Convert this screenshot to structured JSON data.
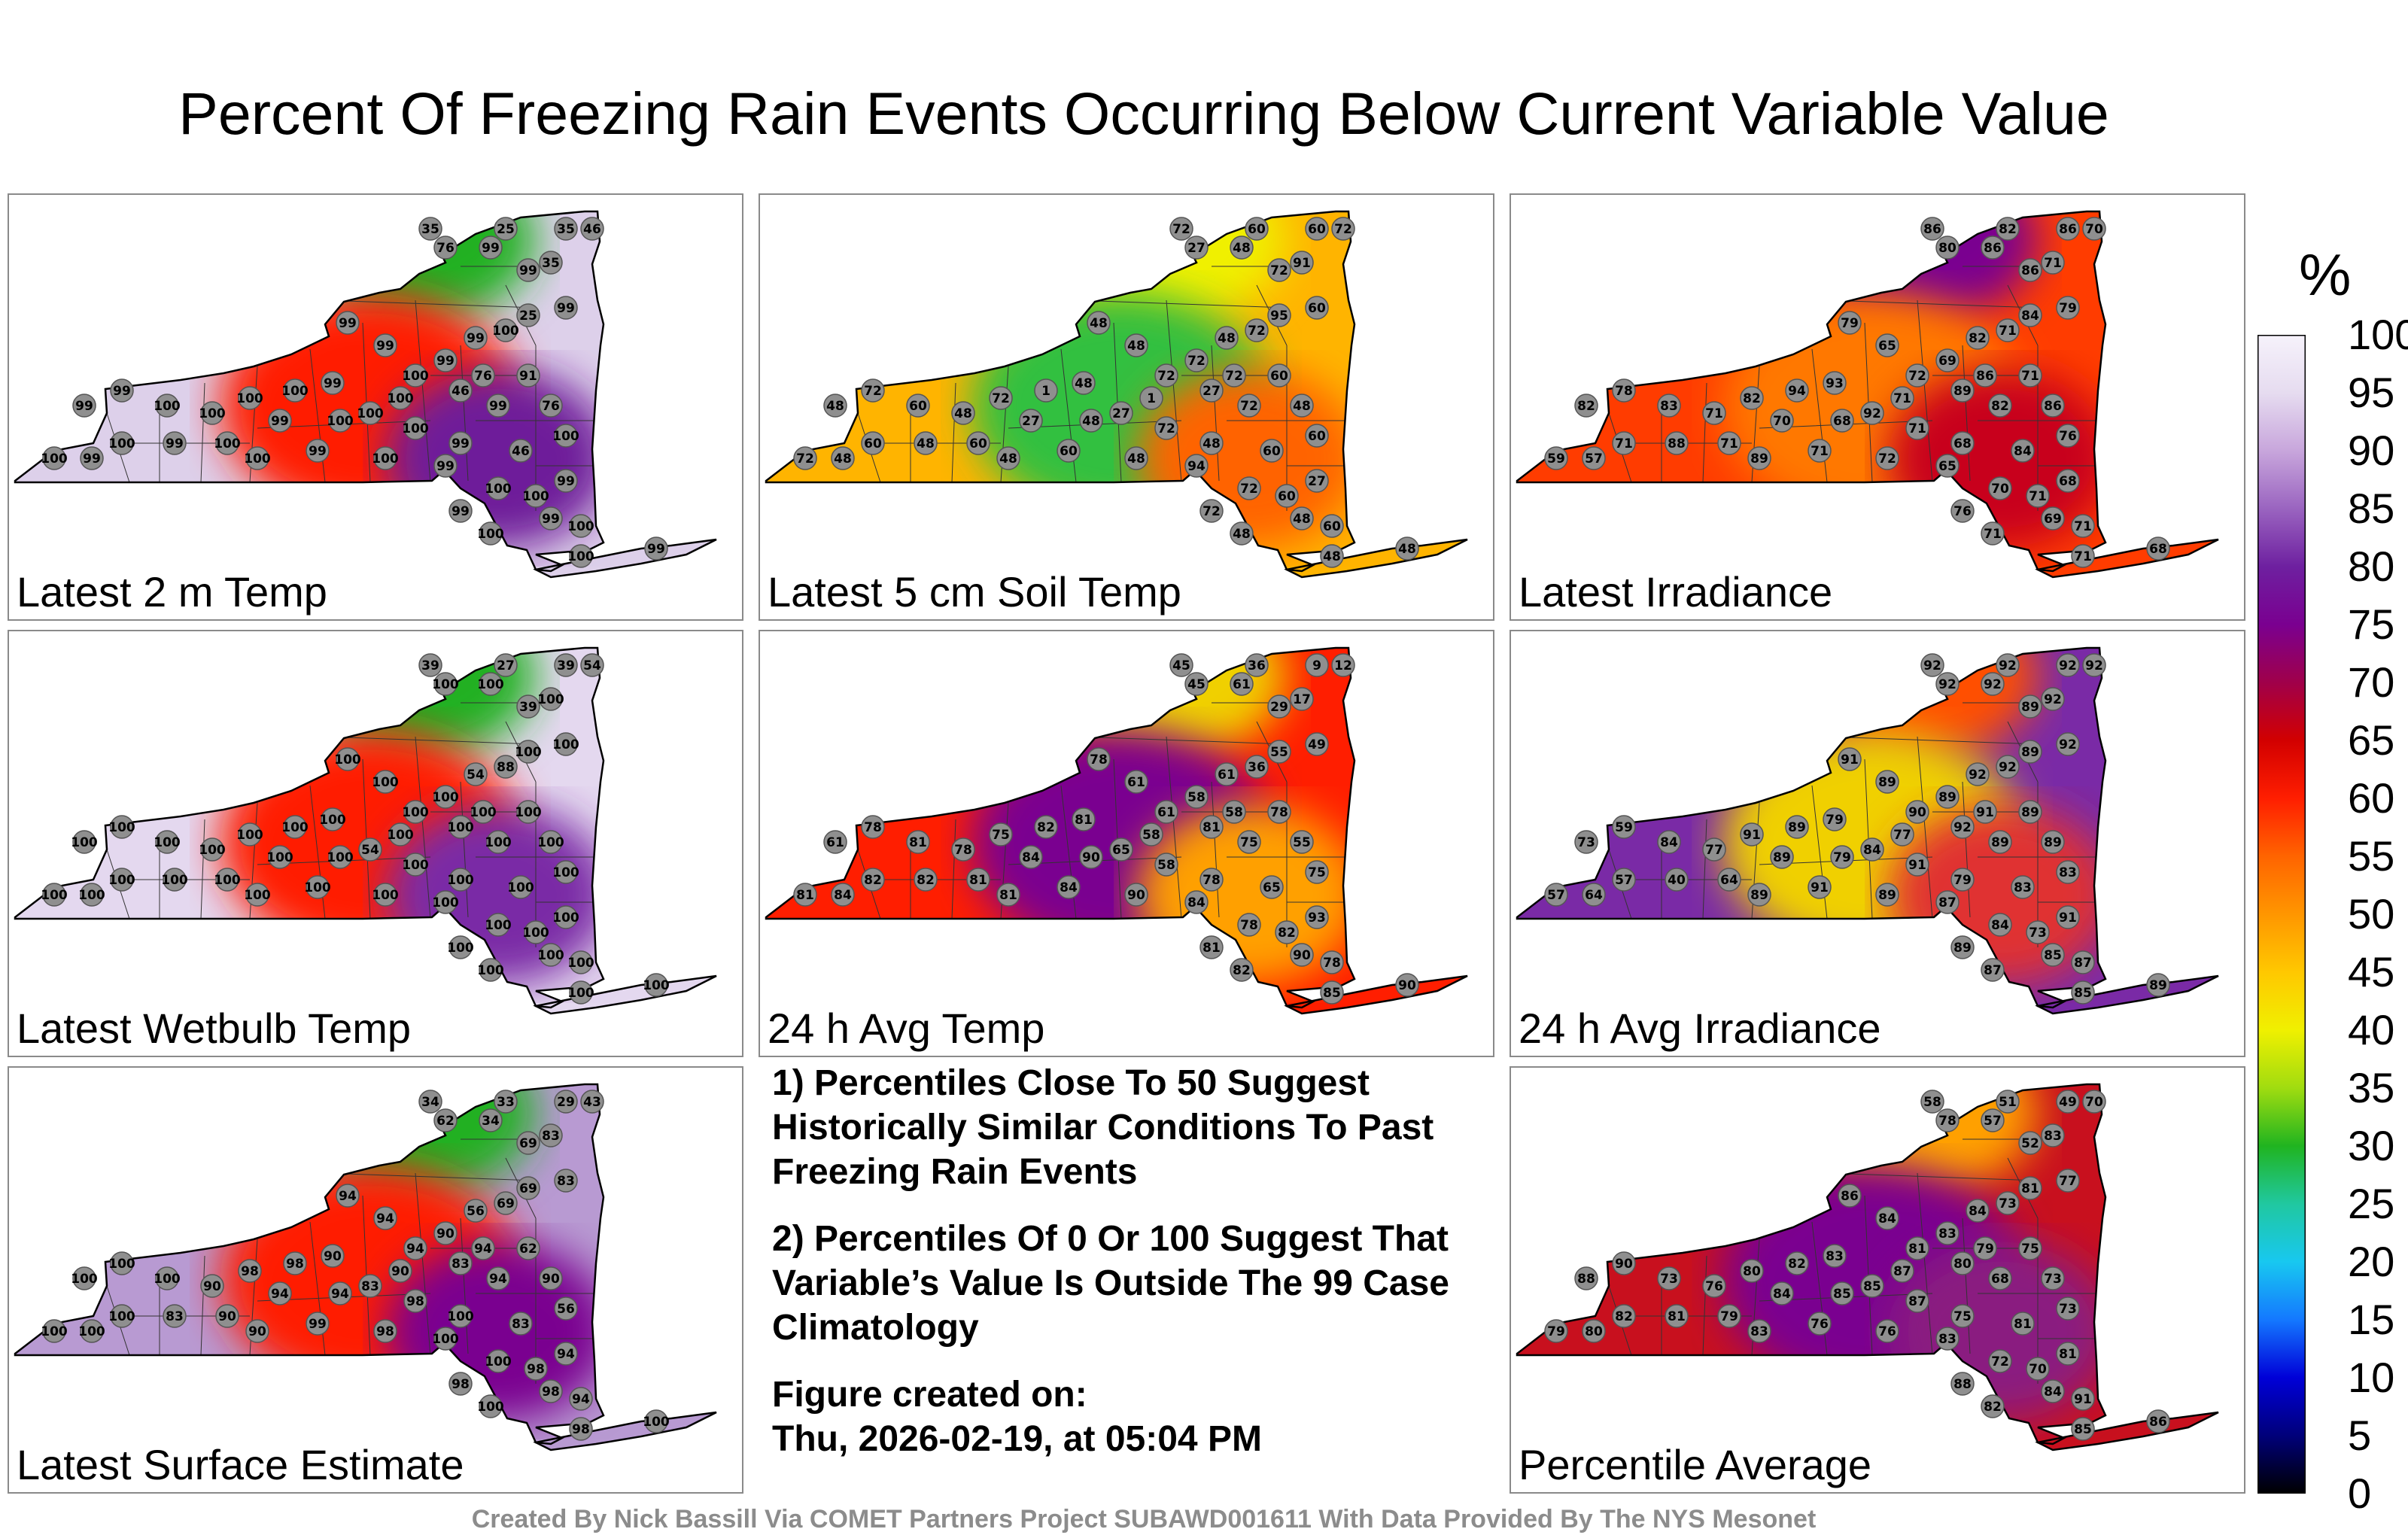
{
  "title": "Percent Of Freezing Rain Events Occurring Below Current Variable Value",
  "colorbar": {
    "unit": "%",
    "ticks": [
      "100",
      "95",
      "90",
      "85",
      "80",
      "75",
      "70",
      "65",
      "60",
      "55",
      "50",
      "45",
      "40",
      "35",
      "30",
      "25",
      "20",
      "15",
      "10",
      "5",
      "0"
    ],
    "colors": [
      "#000000",
      "#00007a",
      "#0000d8",
      "#1478ff",
      "#18c8f0",
      "#20c8a0",
      "#20b420",
      "#a0dc10",
      "#f0f000",
      "#ffc800",
      "#ff9600",
      "#ff6400",
      "#ff1e00",
      "#d20000",
      "#a0004a",
      "#7a0090",
      "#6e20a0",
      "#9a64c0",
      "#c8a6dc",
      "#e6dcf0",
      "#f6f2fb"
    ]
  },
  "panels": [
    {
      "label": "Latest 2 m Temp",
      "bg": "#ddd0ea",
      "blobs": [
        {
          "c": "#20b020"
        },
        {
          "c": "#ff1e00"
        },
        {
          "c": "#6e1a9a"
        }
      ],
      "dots": [
        "35",
        "25",
        "35",
        "46",
        "76",
        "99",
        "99",
        "35",
        "25",
        "99",
        "100",
        "99",
        "99",
        "76",
        "91",
        "46",
        "99",
        "76",
        "46",
        "100",
        "99",
        "99",
        "100",
        "100",
        "100",
        "99",
        "100",
        "100",
        "100",
        "100",
        "99",
        "99",
        "100",
        "100",
        "99",
        "100",
        "99",
        "100",
        "99",
        "100",
        "99",
        "100",
        "100",
        "99",
        "99",
        "100",
        "99",
        "100",
        "99",
        "100",
        "99",
        "100",
        "100",
        "99"
      ]
    },
    {
      "label": "Latest 5 cm Soil Temp",
      "bg": "#ffb400",
      "blobs": [
        {
          "c": "#f0f000"
        },
        {
          "c": "#30c040"
        },
        {
          "c": "#ff6400"
        }
      ],
      "dots": [
        "72",
        "60",
        "60",
        "72",
        "27",
        "48",
        "72",
        "91",
        "95",
        "60",
        "72",
        "48",
        "72",
        "72",
        "60",
        "27",
        "72",
        "48",
        "60",
        "60",
        "48",
        "48",
        "72",
        "1",
        "27",
        "48",
        "1",
        "72",
        "48",
        "60",
        "72",
        "48",
        "72",
        "48",
        "27",
        "60",
        "48",
        "60",
        "48",
        "72",
        "48",
        "72",
        "60",
        "27",
        "48",
        "60",
        "72",
        "48",
        "94",
        "48",
        "60",
        "48",
        "48",
        "48"
      ]
    },
    {
      "label": "Latest Irradiance",
      "bg": "#ff3c00",
      "blobs": [
        {
          "c": "#7a0090"
        },
        {
          "c": "#ff7800"
        },
        {
          "c": "#c8001e"
        }
      ],
      "dots": [
        "86",
        "82",
        "86",
        "70",
        "80",
        "86",
        "86",
        "71",
        "84",
        "79",
        "71",
        "82",
        "69",
        "86",
        "71",
        "89",
        "82",
        "86",
        "84",
        "76",
        "79",
        "65",
        "72",
        "71",
        "92",
        "93",
        "94",
        "82",
        "71",
        "83",
        "78",
        "82",
        "71",
        "68",
        "70",
        "71",
        "88",
        "71",
        "57",
        "59",
        "68",
        "70",
        "71",
        "68",
        "69",
        "71",
        "76",
        "71",
        "65",
        "72",
        "71",
        "89",
        "71",
        "68"
      ]
    },
    {
      "label": "Latest Wetbulb Temp",
      "bg": "#e4d8ef",
      "blobs": [
        {
          "c": "#20b020"
        },
        {
          "c": "#ff1e00"
        },
        {
          "c": "#7a2aa6"
        }
      ],
      "dots": [
        "39",
        "27",
        "39",
        "54",
        "100",
        "100",
        "39",
        "100",
        "100",
        "100",
        "88",
        "54",
        "100",
        "100",
        "100",
        "100",
        "100",
        "100",
        "100",
        "100",
        "100",
        "100",
        "100",
        "100",
        "54",
        "100",
        "100",
        "100",
        "100",
        "100",
        "100",
        "100",
        "100",
        "100",
        "100",
        "100",
        "100",
        "100",
        "100",
        "100",
        "100",
        "100",
        "100",
        "100",
        "100",
        "100",
        "100",
        "100",
        "100",
        "100",
        "100",
        "100",
        "100",
        "100"
      ]
    },
    {
      "label": "24 h Avg Temp",
      "bg": "#ff1e00",
      "blobs": [
        {
          "c": "#f0d000"
        },
        {
          "c": "#7a0090"
        },
        {
          "c": "#ffa000"
        }
      ],
      "dots": [
        "45",
        "36",
        "9",
        "12",
        "45",
        "61",
        "29",
        "17",
        "55",
        "49",
        "36",
        "61",
        "58",
        "58",
        "78",
        "81",
        "75",
        "55",
        "65",
        "75",
        "78",
        "61",
        "61",
        "58",
        "65",
        "81",
        "82",
        "75",
        "78",
        "81",
        "78",
        "61",
        "58",
        "90",
        "84",
        "81",
        "82",
        "82",
        "84",
        "81",
        "78",
        "78",
        "82",
        "93",
        "90",
        "78",
        "81",
        "82",
        "84",
        "90",
        "84",
        "81",
        "85",
        "90"
      ]
    },
    {
      "label": "24 h Avg Irradiance",
      "bg": "#7a2aa6",
      "blobs": [
        {
          "c": "#ff5000"
        },
        {
          "c": "#f0d000"
        },
        {
          "c": "#e03030"
        }
      ],
      "dots": [
        "92",
        "92",
        "92",
        "92",
        "92",
        "92",
        "89",
        "92",
        "89",
        "92",
        "92",
        "92",
        "89",
        "91",
        "89",
        "92",
        "89",
        "89",
        "83",
        "83",
        "91",
        "89",
        "90",
        "77",
        "84",
        "79",
        "89",
        "91",
        "77",
        "84",
        "59",
        "73",
        "91",
        "79",
        "89",
        "64",
        "40",
        "57",
        "64",
        "57",
        "79",
        "84",
        "73",
        "91",
        "85",
        "87",
        "89",
        "87",
        "87",
        "89",
        "91",
        "89",
        "85",
        "89"
      ]
    },
    {
      "label": "Latest Surface Estimate",
      "bg": "#b89ad2",
      "blobs": [
        {
          "c": "#20b020"
        },
        {
          "c": "#ff1e00"
        },
        {
          "c": "#7a0090"
        }
      ],
      "dots": [
        "34",
        "33",
        "29",
        "43",
        "62",
        "34",
        "69",
        "83",
        "69",
        "83",
        "69",
        "56",
        "90",
        "94",
        "62",
        "83",
        "94",
        "90",
        "83",
        "56",
        "94",
        "94",
        "94",
        "90",
        "83",
        "90",
        "98",
        "98",
        "90",
        "100",
        "100",
        "100",
        "98",
        "94",
        "94",
        "90",
        "83",
        "100",
        "100",
        "100",
        "100",
        "100",
        "98",
        "94",
        "98",
        "94",
        "98",
        "100",
        "100",
        "98",
        "99",
        "90",
        "98",
        "100"
      ]
    },
    {
      "label": "Percentile Average",
      "bg": "#c8101e",
      "blobs": [
        {
          "c": "#ffa000"
        },
        {
          "c": "#7a0090"
        },
        {
          "c": "#8a1a80"
        }
      ],
      "dots": [
        "58",
        "51",
        "49",
        "70",
        "78",
        "57",
        "52",
        "83",
        "81",
        "77",
        "73",
        "84",
        "83",
        "79",
        "75",
        "80",
        "68",
        "73",
        "81",
        "73",
        "86",
        "84",
        "81",
        "87",
        "85",
        "83",
        "82",
        "80",
        "76",
        "73",
        "90",
        "88",
        "87",
        "85",
        "84",
        "79",
        "81",
        "82",
        "80",
        "79",
        "75",
        "72",
        "70",
        "81",
        "84",
        "91",
        "88",
        "82",
        "83",
        "76",
        "76",
        "83",
        "85",
        "86"
      ]
    }
  ],
  "notes": {
    "n1": "1) Percentiles Close To 50 Suggest Historically Similar Conditions To Past Freezing Rain Events",
    "n2": "2) Percentiles Of 0 Or 100 Suggest That Variable’s Value Is Outside The 99 Case Climatology",
    "created_label": "Figure created on:",
    "created_value": "Thu, 2026-02-19, at 05:04 PM"
  },
  "footer": "Created By Nick Bassill Via COMET Partners Project SUBAWD001611 With Data Provided By The NYS Mesonet"
}
